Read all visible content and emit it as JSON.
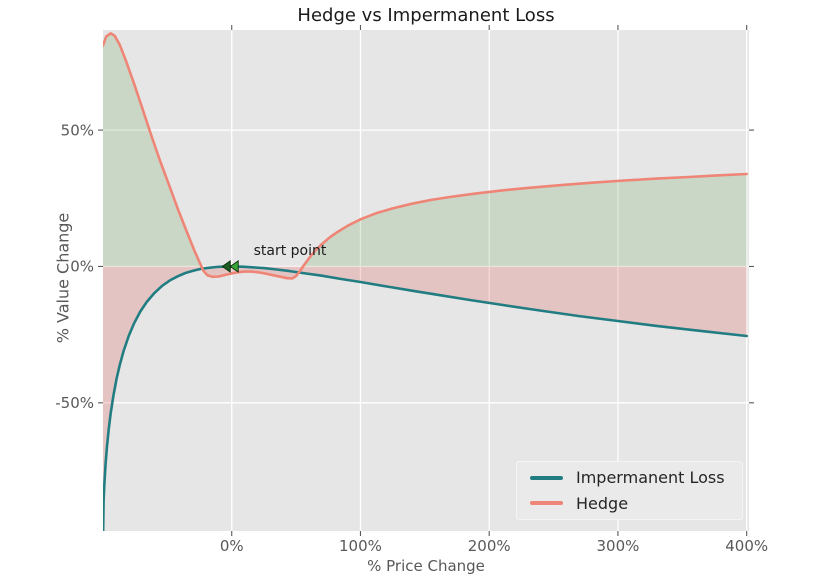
{
  "chart_data": {
    "type": "line",
    "title": "Hedge vs Impermanent Loss",
    "ylabel": "% Value Change",
    "xlabel": "% Price Change",
    "xlim": [
      -100,
      401.8
    ],
    "ylim": [
      -97,
      86.7
    ],
    "grid": true,
    "plot_background": "#e6e6e6",
    "grid_color": "#ffffff",
    "tick_color": "#595959",
    "x_ticks": [
      {
        "value": 0,
        "label": "0%"
      },
      {
        "value": 100,
        "label": "100%"
      },
      {
        "value": 200,
        "label": "200%"
      },
      {
        "value": 300,
        "label": "300%"
      },
      {
        "value": 400,
        "label": "400%"
      }
    ],
    "y_ticks": [
      {
        "value": 50,
        "label": "50%"
      },
      {
        "value": 0,
        "label": "0%"
      },
      {
        "value": -50,
        "label": "-50%"
      }
    ],
    "legend_position": "lower right",
    "annotation": {
      "text": "start point",
      "x": 17,
      "y": 5.2
    },
    "start_marker": {
      "x": 0,
      "y": 0,
      "shape": "double-left-arrow",
      "fill_left": "#1d5c20",
      "fill_right": "#38a336",
      "edge": "#0b2e0c"
    },
    "fills": [
      {
        "name": "hedge-gain-region",
        "color": "rgba(104,162,87,0.22)",
        "between": "y=0 and Hedge where Hedge>0"
      },
      {
        "name": "loss-region",
        "color": "rgba(225,78,72,0.22)",
        "between": "y=0 and min(Impermanent Loss, Hedge) where below 0"
      }
    ],
    "series": [
      {
        "name": "Impermanent Loss",
        "color": "#217d82",
        "points": [
          [
            -100,
            -100
          ],
          [
            -99.5,
            -85.9
          ],
          [
            -99,
            -80.3
          ],
          [
            -98,
            -72.3
          ],
          [
            -97,
            -66.4
          ],
          [
            -95.5,
            -59.4
          ],
          [
            -94,
            -53.8
          ],
          [
            -92,
            -47.6
          ],
          [
            -89.5,
            -41.3
          ],
          [
            -87,
            -36.2
          ],
          [
            -84,
            -31.0
          ],
          [
            -80,
            -25.5
          ],
          [
            -76,
            -21.0
          ],
          [
            -71,
            -16.5
          ],
          [
            -66,
            -13.0
          ],
          [
            -60,
            -9.7
          ],
          [
            -54,
            -7.1
          ],
          [
            -48,
            -5.1
          ],
          [
            -42,
            -3.6
          ],
          [
            -36,
            -2.4
          ],
          [
            -30,
            -1.6
          ],
          [
            -24,
            -0.9
          ],
          [
            -18,
            -0.5
          ],
          [
            -12,
            -0.2
          ],
          [
            -6,
            -0.05
          ],
          [
            0,
            0
          ],
          [
            8,
            -0.1
          ],
          [
            16,
            -0.3
          ],
          [
            25,
            -0.6
          ],
          [
            35,
            -1.1
          ],
          [
            45,
            -1.7
          ],
          [
            55,
            -2.4
          ],
          [
            70,
            -3.4
          ],
          [
            85,
            -4.6
          ],
          [
            100,
            -5.7
          ],
          [
            120,
            -7.3
          ],
          [
            140,
            -8.9
          ],
          [
            160,
            -10.4
          ],
          [
            185,
            -12.3
          ],
          [
            210,
            -14.1
          ],
          [
            240,
            -16.2
          ],
          [
            270,
            -18.2
          ],
          [
            300,
            -20.0
          ],
          [
            330,
            -21.8
          ],
          [
            360,
            -23.4
          ],
          [
            400,
            -25.5
          ]
        ]
      },
      {
        "name": "Hedge",
        "color": "#ef8577",
        "points": [
          [
            -100,
            81
          ],
          [
            -97.5,
            84.3
          ],
          [
            -94,
            85.5
          ],
          [
            -91,
            84.6
          ],
          [
            -87,
            81.3
          ],
          [
            -82,
            75.2
          ],
          [
            -76,
            67.2
          ],
          [
            -70,
            58.8
          ],
          [
            -63,
            48.8
          ],
          [
            -56,
            39.2
          ],
          [
            -49,
            30.2
          ],
          [
            -42,
            21.2
          ],
          [
            -35,
            12.8
          ],
          [
            -29,
            5.8
          ],
          [
            -25,
            1.5
          ],
          [
            -22,
            -1.6
          ],
          [
            -19,
            -3.2
          ],
          [
            -15,
            -3.8
          ],
          [
            -10,
            -3.7
          ],
          [
            -5,
            -3.1
          ],
          [
            0,
            -2.6
          ],
          [
            5,
            -2.1
          ],
          [
            10,
            -1.9
          ],
          [
            15,
            -1.9
          ],
          [
            20,
            -2.1
          ],
          [
            26,
            -2.6
          ],
          [
            32,
            -3.2
          ],
          [
            38,
            -3.8
          ],
          [
            43,
            -4.3
          ],
          [
            47,
            -4.4
          ],
          [
            50,
            -3.5
          ],
          [
            53,
            -1.7
          ],
          [
            56,
            0.4
          ],
          [
            60,
            3.0
          ],
          [
            65,
            5.9
          ],
          [
            70,
            8.2
          ],
          [
            76,
            10.6
          ],
          [
            82,
            12.6
          ],
          [
            90,
            14.9
          ],
          [
            100,
            17.3
          ],
          [
            112,
            19.5
          ],
          [
            125,
            21.3
          ],
          [
            140,
            23.0
          ],
          [
            155,
            24.4
          ],
          [
            170,
            25.5
          ],
          [
            190,
            26.8
          ],
          [
            210,
            27.9
          ],
          [
            230,
            28.8
          ],
          [
            255,
            29.8
          ],
          [
            280,
            30.7
          ],
          [
            305,
            31.5
          ],
          [
            330,
            32.2
          ],
          [
            355,
            32.8
          ],
          [
            375,
            33.3
          ],
          [
            400,
            33.9
          ]
        ]
      }
    ]
  }
}
